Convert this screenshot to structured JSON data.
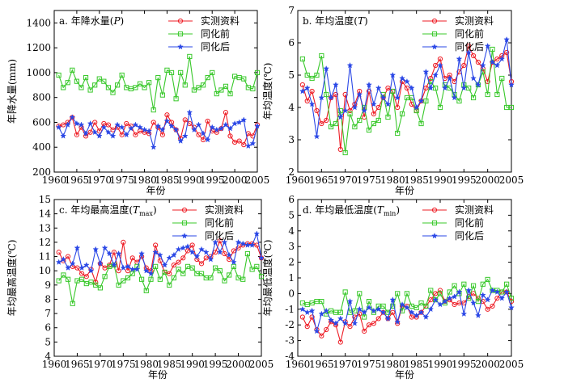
{
  "chart_data": [
    {
      "type": "line",
      "title_prefix": "a. 年降水量(",
      "title_symbol": "P",
      "title_suffix": ")",
      "ylabel": "年降水量(mm)",
      "xlabel": "年份",
      "xlim": [
        1960,
        2005
      ],
      "ylim": [
        200,
        1500
      ],
      "yticks": [
        200,
        400,
        600,
        800,
        1000,
        1200,
        1400
      ],
      "xticks": [
        1960,
        1965,
        1970,
        1975,
        1980,
        1985,
        1990,
        1995,
        2000,
        2005
      ],
      "x": [
        1961,
        1962,
        1963,
        1964,
        1965,
        1966,
        1967,
        1968,
        1969,
        1970,
        1971,
        1972,
        1973,
        1974,
        1975,
        1976,
        1977,
        1978,
        1979,
        1980,
        1981,
        1982,
        1983,
        1984,
        1985,
        1986,
        1987,
        1988,
        1989,
        1990,
        1991,
        1992,
        1993,
        1994,
        1995,
        1996,
        1997,
        1998,
        1999,
        2000,
        2001,
        2002,
        2003,
        2004,
        2005
      ],
      "series": [
        {
          "name": "实测资料",
          "color": "#ee1c25",
          "marker": "circle",
          "values": [
            570,
            580,
            600,
            640,
            500,
            560,
            490,
            520,
            600,
            530,
            590,
            580,
            540,
            560,
            500,
            590,
            570,
            500,
            530,
            520,
            510,
            600,
            560,
            500,
            660,
            600,
            540,
            470,
            620,
            590,
            560,
            500,
            460,
            610,
            530,
            520,
            550,
            680,
            490,
            440,
            450,
            420,
            510,
            490,
            580
          ]
        },
        {
          "name": "同化前",
          "color": "#38c82a",
          "marker": "square",
          "values": [
            980,
            880,
            920,
            1020,
            930,
            880,
            960,
            860,
            900,
            950,
            930,
            880,
            840,
            900,
            980,
            880,
            870,
            880,
            910,
            880,
            920,
            700,
            960,
            820,
            1020,
            1000,
            790,
            1000,
            900,
            1130,
            860,
            880,
            900,
            960,
            1000,
            830,
            860,
            890,
            830,
            970,
            960,
            950,
            880,
            870,
            1000
          ]
        },
        {
          "name": "同化后",
          "color": "#2a47e6",
          "marker": "star",
          "values": [
            560,
            490,
            580,
            640,
            590,
            580,
            510,
            590,
            520,
            490,
            560,
            520,
            490,
            580,
            560,
            500,
            550,
            580,
            560,
            540,
            530,
            400,
            570,
            540,
            610,
            570,
            540,
            450,
            490,
            680,
            540,
            580,
            510,
            460,
            560,
            540,
            550,
            580,
            550,
            590,
            600,
            620,
            410,
            430,
            570
          ]
        }
      ],
      "legend": "top-right"
    },
    {
      "type": "line",
      "title_prefix": "b. 年均温度(",
      "title_symbol": "T",
      "title_suffix": ")",
      "ylabel": "年均温度(℃)",
      "xlabel": "年份",
      "xlim": [
        1960,
        2005
      ],
      "ylim": [
        2,
        7
      ],
      "yticks": [
        2,
        3,
        4,
        5,
        6,
        7
      ],
      "xticks": [
        1960,
        1965,
        1970,
        1975,
        1980,
        1985,
        1990,
        1995,
        2000,
        2005
      ],
      "x": [
        1961,
        1962,
        1963,
        1964,
        1965,
        1966,
        1967,
        1968,
        1969,
        1970,
        1971,
        1972,
        1973,
        1974,
        1975,
        1976,
        1977,
        1978,
        1979,
        1980,
        1981,
        1982,
        1983,
        1984,
        1985,
        1986,
        1987,
        1988,
        1989,
        1990,
        1991,
        1992,
        1993,
        1994,
        1995,
        1996,
        1997,
        1998,
        1999,
        2000,
        2001,
        2002,
        2003,
        2004,
        2005
      ],
      "series": [
        {
          "name": "实测资料",
          "color": "#ee1c25",
          "marker": "circle",
          "values": [
            4.7,
            4.2,
            4.5,
            3.9,
            3.5,
            3.6,
            4.3,
            4.4,
            2.7,
            4.4,
            3.9,
            4.1,
            4.5,
            3.7,
            4.5,
            3.8,
            4.0,
            4.3,
            4.6,
            4.5,
            4.0,
            4.8,
            4.6,
            4.1,
            3.9,
            4.2,
            4.6,
            4.9,
            5.3,
            5.5,
            4.9,
            5.0,
            4.8,
            5.1,
            5.3,
            5.9,
            5.6,
            5.4,
            5.2,
            4.8,
            5.4,
            5.5,
            5.6,
            5.7,
            4.8
          ]
        },
        {
          "name": "同化前",
          "color": "#38c82a",
          "marker": "square",
          "values": [
            5.5,
            5.0,
            4.9,
            5.0,
            5.6,
            4.4,
            3.4,
            3.5,
            3.9,
            2.6,
            3.8,
            3.4,
            3.6,
            4.0,
            3.3,
            3.5,
            3.6,
            4.4,
            3.7,
            4.5,
            3.2,
            3.8,
            4.3,
            4.3,
            3.9,
            3.5,
            4.2,
            4.8,
            4.6,
            4.0,
            4.7,
            4.6,
            4.4,
            4.2,
            4.7,
            4.6,
            4.3,
            4.7,
            5.1,
            4.4,
            5.8,
            4.4,
            4.9,
            4.0,
            4.0
          ]
        },
        {
          "name": "同化后",
          "color": "#2a47e6",
          "marker": "star",
          "values": [
            4.5,
            4.6,
            4.1,
            3.1,
            4.3,
            5.2,
            4.3,
            4.7,
            3.7,
            3.9,
            5.3,
            4.0,
            4.4,
            3.9,
            4.7,
            4.1,
            4.6,
            4.3,
            4.1,
            5.0,
            4.3,
            4.9,
            4.8,
            4.6,
            4.0,
            4.2,
            5.1,
            4.6,
            5.0,
            5.3,
            4.6,
            4.9,
            4.3,
            5.5,
            4.6,
            5.7,
            4.9,
            4.7,
            5.3,
            5.9,
            5.4,
            5.3,
            5.5,
            6.1,
            4.7
          ]
        }
      ],
      "legend": "top-right"
    },
    {
      "type": "line",
      "title_prefix": "c. 年均最高温度(",
      "title_symbol": "T",
      "title_subscript": "max",
      "title_suffix": ")",
      "ylabel": "年均最高温度(℃)",
      "xlabel": "年份",
      "xlim": [
        1960,
        2005
      ],
      "ylim": [
        4,
        15
      ],
      "yticks": [
        4,
        5,
        6,
        7,
        8,
        9,
        10,
        11,
        12,
        13,
        14,
        15
      ],
      "xticks": [
        1960,
        1965,
        1970,
        1975,
        1980,
        1985,
        1990,
        1995,
        2000,
        2005
      ],
      "x": [
        1961,
        1962,
        1963,
        1964,
        1965,
        1966,
        1967,
        1968,
        1969,
        1970,
        1971,
        1972,
        1973,
        1974,
        1975,
        1976,
        1977,
        1978,
        1979,
        1980,
        1981,
        1982,
        1983,
        1984,
        1985,
        1986,
        1987,
        1988,
        1989,
        1990,
        1991,
        1992,
        1993,
        1994,
        1995,
        1996,
        1997,
        1998,
        1999,
        2000,
        2001,
        2002,
        2003,
        2004,
        2005
      ],
      "series": [
        {
          "name": "实测资料",
          "color": "#ee1c25",
          "marker": "circle",
          "values": [
            11.3,
            10.7,
            11.0,
            10.3,
            10.2,
            9.8,
            9.6,
            10.1,
            9.2,
            10.5,
            10.2,
            10.4,
            11.3,
            10.0,
            12.0,
            10.0,
            10.9,
            10.6,
            11.0,
            10.2,
            10.0,
            11.8,
            10.7,
            9.9,
            9.8,
            10.4,
            10.6,
            10.9,
            11.4,
            11.8,
            10.8,
            10.5,
            10.9,
            11.0,
            11.3,
            12.1,
            11.2,
            10.8,
            11.4,
            11.6,
            11.8,
            11.9,
            11.9,
            11.8,
            10.9
          ]
        },
        {
          "name": "同化前",
          "color": "#38c82a",
          "marker": "square",
          "values": [
            9.3,
            9.7,
            9.4,
            7.7,
            9.3,
            9.4,
            9.1,
            9.2,
            9.0,
            8.8,
            9.6,
            10.3,
            10.4,
            9.0,
            9.3,
            9.5,
            9.8,
            10.3,
            9.4,
            8.6,
            9.4,
            10.3,
            9.4,
            9.9,
            9.0,
            9.5,
            10.1,
            9.8,
            10.3,
            10.2,
            9.8,
            9.8,
            9.5,
            9.5,
            10.2,
            10.0,
            9.3,
            9.7,
            10.3,
            9.5,
            9.4,
            11.2,
            10.1,
            10.3,
            9.6
          ]
        },
        {
          "name": "同化后",
          "color": "#2a47e6",
          "marker": "star",
          "values": [
            10.6,
            10.8,
            10.2,
            10.5,
            11.6,
            10.2,
            10.4,
            10.0,
            11.5,
            10.5,
            11.6,
            11.2,
            10.4,
            11.2,
            10.2,
            10.3,
            10.1,
            10.1,
            11.2,
            10.0,
            9.8,
            11.3,
            11.1,
            10.4,
            10.9,
            11.1,
            11.5,
            11.6,
            11.7,
            11.3,
            11.0,
            11.5,
            11.3,
            10.8,
            12.0,
            11.3,
            12.0,
            11.1,
            10.6,
            12.0,
            11.9,
            11.8,
            11.8,
            12.6,
            10.9
          ]
        }
      ],
      "legend": "top-right"
    },
    {
      "type": "line",
      "title_prefix": "d. 年均最低温度(",
      "title_symbol": "T",
      "title_subscript": "min",
      "title_suffix": ")",
      "ylabel": "年均最低温度(℃)",
      "xlabel": "年份",
      "xlim": [
        1960,
        2005
      ],
      "ylim": [
        -4,
        6
      ],
      "yticks": [
        -4,
        -3,
        -2,
        -1,
        0,
        1,
        2,
        3,
        4,
        5,
        6
      ],
      "xticks": [
        1960,
        1965,
        1970,
        1975,
        1980,
        1985,
        1990,
        1995,
        2000,
        2005
      ],
      "x": [
        1961,
        1962,
        1963,
        1964,
        1965,
        1966,
        1967,
        1968,
        1969,
        1970,
        1971,
        1972,
        1973,
        1974,
        1975,
        1976,
        1977,
        1978,
        1979,
        1980,
        1981,
        1982,
        1983,
        1984,
        1985,
        1986,
        1987,
        1988,
        1989,
        1990,
        1991,
        1992,
        1993,
        1994,
        1995,
        1996,
        1997,
        1998,
        1999,
        2000,
        2001,
        2002,
        2003,
        2004,
        2005
      ],
      "series": [
        {
          "name": "实测资料",
          "color": "#ee1c25",
          "marker": "circle",
          "values": [
            -1.5,
            -2.1,
            -1.5,
            -2.3,
            -2.7,
            -2.3,
            -1.8,
            -2.0,
            -3.1,
            -1.8,
            -2.1,
            -1.5,
            -1.3,
            -2.4,
            -2.0,
            -1.9,
            -1.6,
            -1.2,
            -1.6,
            -1.2,
            -1.9,
            -0.8,
            -0.8,
            -1.5,
            -1.5,
            -1.2,
            -0.8,
            -0.4,
            0.0,
            0.2,
            -0.5,
            -0.4,
            -0.7,
            -0.6,
            -0.6,
            -0.2,
            0.0,
            -0.3,
            -0.5,
            -1.0,
            -0.8,
            -0.3,
            0.1,
            0.1,
            -0.5
          ]
        },
        {
          "name": "同化前",
          "color": "#38c82a",
          "marker": "square",
          "values": [
            -0.6,
            -0.7,
            -0.6,
            -0.5,
            -0.5,
            -1.3,
            -1.1,
            -1.2,
            -1.2,
            0.1,
            -1.2,
            -1.1,
            0.0,
            -1.5,
            -0.5,
            -1.2,
            -0.8,
            -0.8,
            -1.2,
            -0.8,
            0.0,
            -1.1,
            0.0,
            -0.8,
            -0.9,
            -0.6,
            -0.8,
            0.2,
            -0.4,
            0.0,
            -0.6,
            0.1,
            0.5,
            0.0,
            0.6,
            -0.3,
            0.5,
            -0.5,
            0.6,
            0.9,
            0.2,
            0.2,
            0.1,
            0.6,
            -0.3
          ]
        },
        {
          "name": "同化后",
          "color": "#2a47e6",
          "marker": "star",
          "values": [
            -1.0,
            -1.2,
            -1.1,
            -2.4,
            -1.3,
            -1.1,
            -1.7,
            -1.9,
            -1.6,
            -1.9,
            -0.5,
            -1.9,
            -1.0,
            -1.2,
            -0.9,
            -1.1,
            -1.0,
            -1.2,
            -1.6,
            -0.4,
            -1.8,
            -0.7,
            -0.9,
            -1.2,
            -1.4,
            -1.2,
            -1.5,
            -1.0,
            -0.4,
            -0.7,
            -0.5,
            -0.3,
            -0.2,
            0.1,
            -1.3,
            0.2,
            -0.6,
            -1.4,
            -0.1,
            -0.4,
            0.2,
            0.1,
            -0.3,
            0.1,
            -0.9
          ]
        }
      ],
      "legend": "top-right"
    }
  ]
}
